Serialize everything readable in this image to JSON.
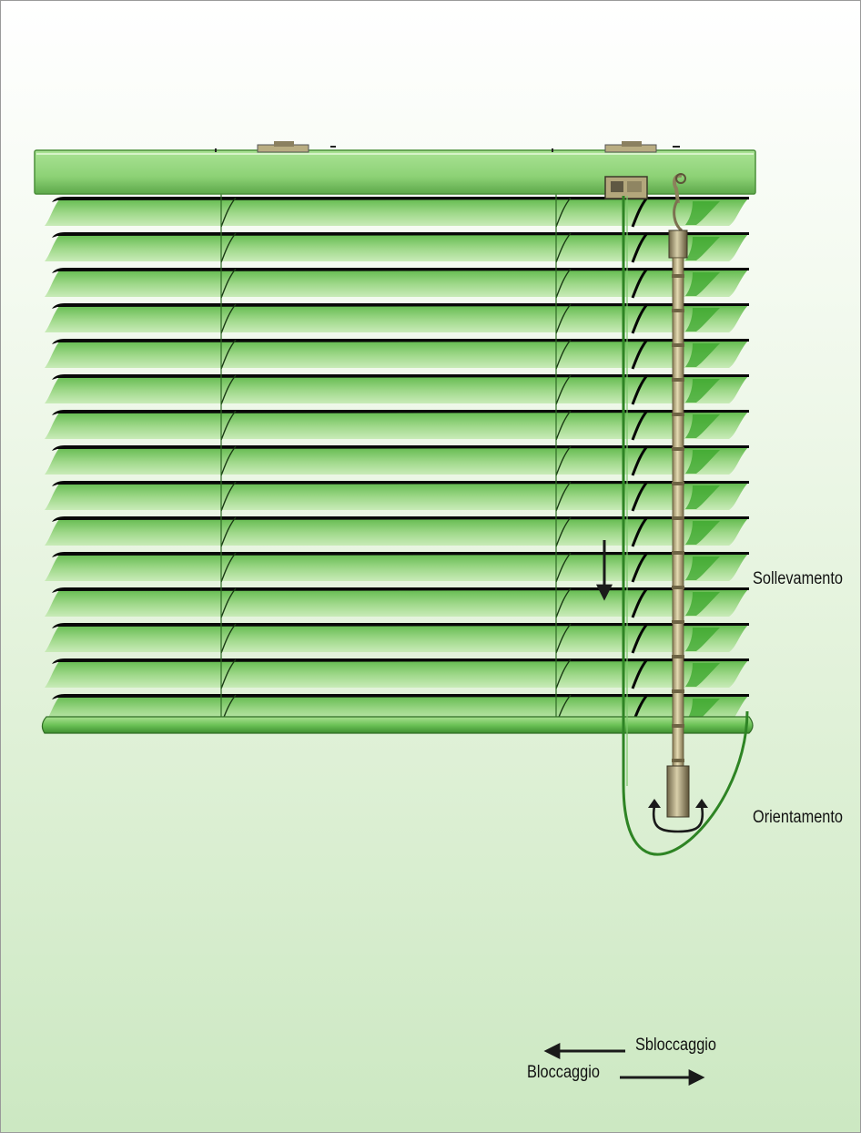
{
  "labels": {
    "lift": "Sollevamento",
    "tilt": "Orientamento",
    "release": "Sbloccaggio",
    "lock": "Bloccaggio"
  },
  "colors": {
    "slat_light": "#b8e3a3",
    "slat_dark": "#5cb84a",
    "slat_edge": "#0a0a0a",
    "headrail": "#8fd37a",
    "wand": "#c8bb8e",
    "cord": "#3f9a2f",
    "text": "#111111"
  },
  "icons": {
    "lift_arrow": "arrow-down-icon",
    "tilt_arrow": "rotate-arrows-icon",
    "release_arrow": "arrow-left-icon",
    "lock_arrow": "arrow-right-icon"
  }
}
